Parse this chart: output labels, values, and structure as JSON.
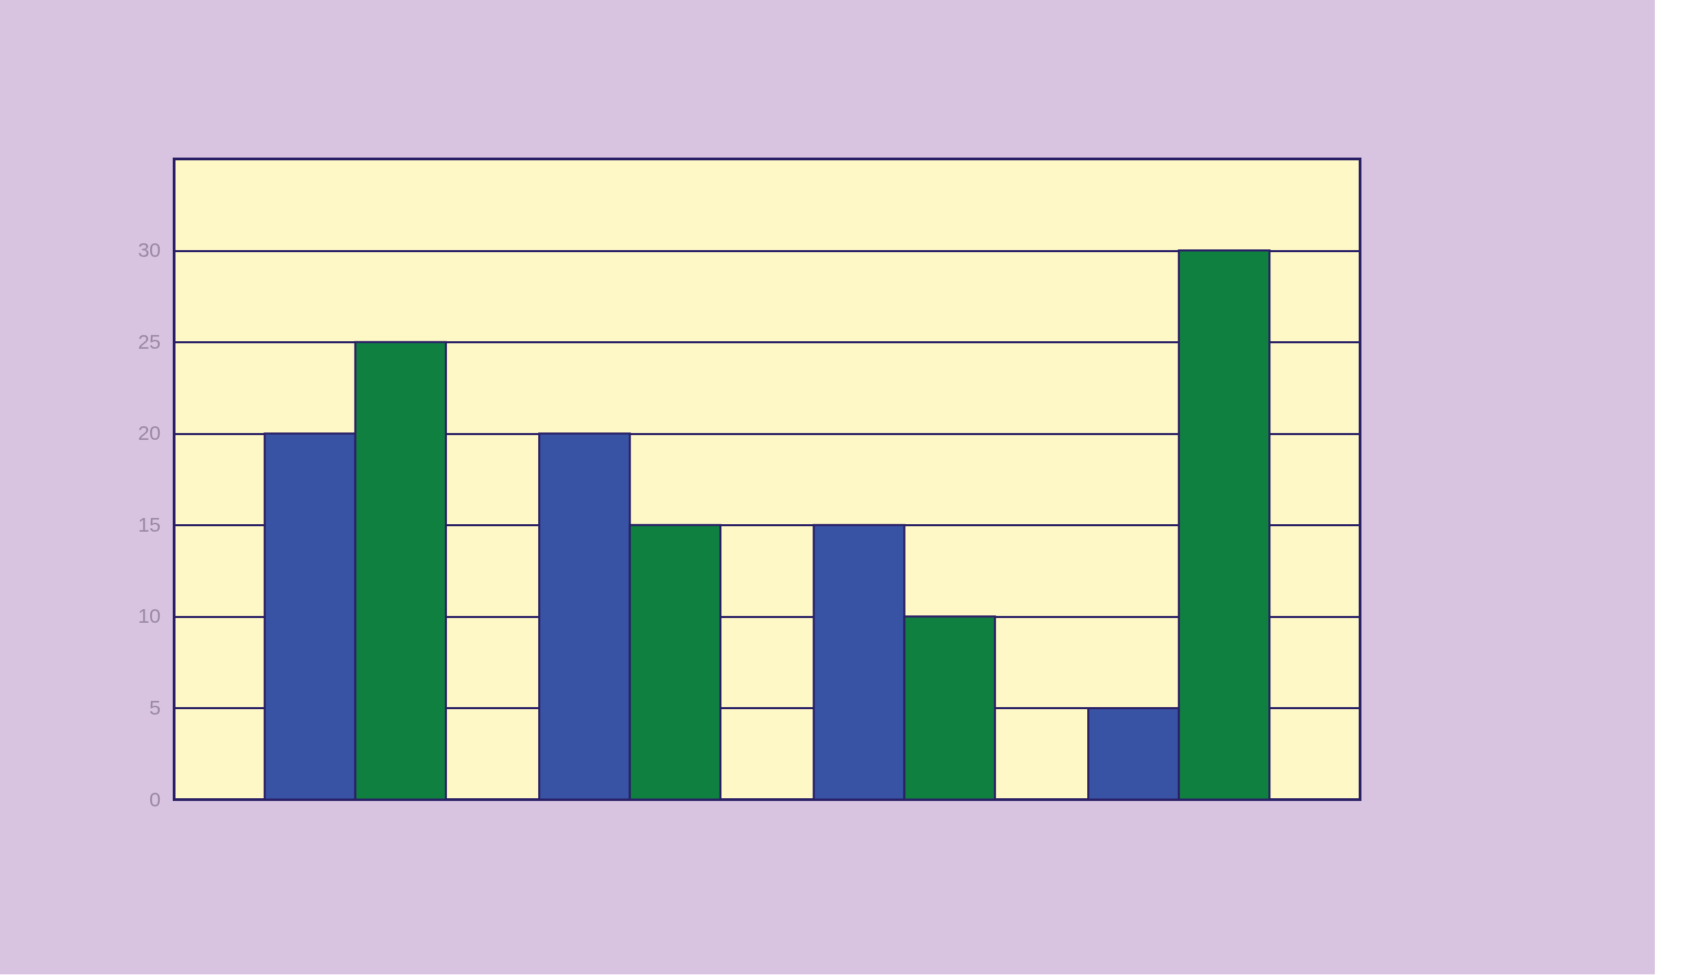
{
  "chart_data": {
    "type": "bar",
    "categories": [
      null,
      null,
      null,
      null
    ],
    "series": [
      {
        "color": "#3953a4",
        "values": [
          20,
          20,
          15,
          5
        ]
      },
      {
        "color": "#108040",
        "values": [
          25,
          15,
          10,
          30
        ]
      }
    ],
    "ylim": [
      0,
      35
    ],
    "yticks": [
      0,
      5,
      10,
      15,
      20,
      25,
      30
    ],
    "grid": "y"
  }
}
